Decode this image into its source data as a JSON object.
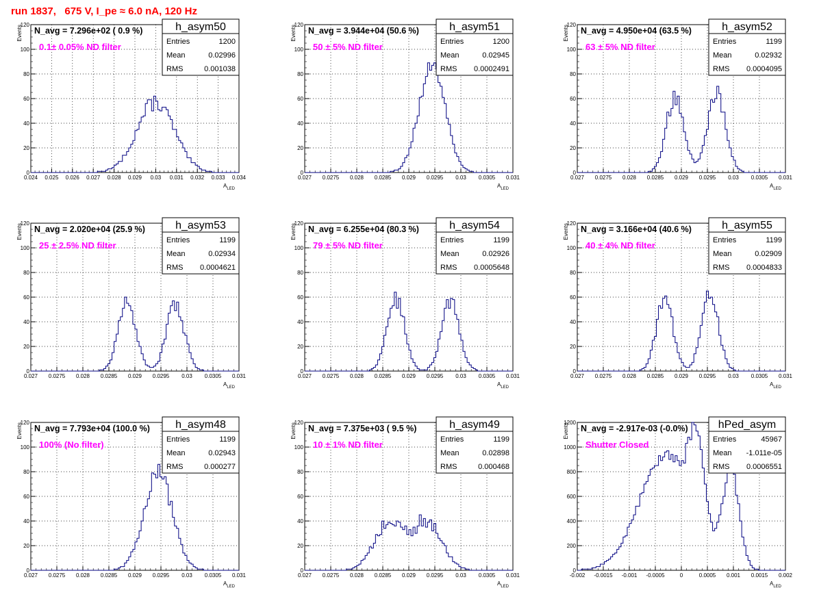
{
  "page": {
    "run_title": "run 1837,   675 V, I_pe ≈ 6.0 nA, 120 Hz"
  },
  "chart_data": [
    {
      "type": "histogram",
      "hist_name": "h_asym50",
      "xlabel": "A_LED",
      "ylabel": "Events",
      "xlim": [
        0.024,
        0.034
      ],
      "ylim": [
        0,
        120
      ],
      "xticks": [
        "0.024",
        "0.025",
        "0.026",
        "0.027",
        "0.028",
        "0.029",
        "0.03",
        "0.031",
        "0.032",
        "0.033",
        "0.034"
      ],
      "yticks": [
        "0",
        "20",
        "40",
        "60",
        "80",
        "100",
        "120"
      ],
      "navg": "N_avg = 7.296e+02 ( 0.9 %)",
      "filter_label": "0.1± 0.05% ND filter",
      "stats": {
        "entries_label": "Entries",
        "entries": "1200",
        "mean_label": "Mean",
        "mean": "0.02996",
        "rms_label": "RMS",
        "rms": "0.001038"
      },
      "peaks": [
        [
          0.03,
          0.0009,
          57
        ]
      ],
      "noise": 0.12
    },
    {
      "type": "histogram",
      "hist_name": "h_asym51",
      "xlabel": "A_LED",
      "ylabel": "Events",
      "xlim": [
        0.027,
        0.031
      ],
      "ylim": [
        0,
        120
      ],
      "xticks": [
        "0.027",
        "0.0275",
        "0.028",
        "0.0285",
        "0.029",
        "0.0295",
        "0.03",
        "0.0305",
        "0.031"
      ],
      "yticks": [
        "0",
        "20",
        "40",
        "60",
        "80",
        "100",
        "120"
      ],
      "navg": "N_avg = 3.944e+04 (50.6 %)",
      "filter_label": "50 ± 5% ND filter",
      "stats": {
        "entries_label": "Entries",
        "entries": "1200",
        "mean_label": "Mean",
        "mean": "0.02945",
        "rms_label": "RMS",
        "rms": "0.0002491"
      },
      "peaks": [
        [
          0.02945,
          0.00025,
          88
        ]
      ],
      "noise": 0.08
    },
    {
      "type": "histogram",
      "hist_name": "h_asym52",
      "xlabel": "A_LED",
      "ylabel": "Events",
      "xlim": [
        0.027,
        0.031
      ],
      "ylim": [
        0,
        120
      ],
      "xticks": [
        "0.027",
        "0.0275",
        "0.028",
        "0.0285",
        "0.029",
        "0.0295",
        "0.03",
        "0.0305",
        "0.031"
      ],
      "yticks": [
        "0",
        "20",
        "40",
        "60",
        "80",
        "100",
        "120"
      ],
      "navg": "N_avg = 4.950e+04 (63.5 %)",
      "filter_label": "63 ± 5% ND filter",
      "stats": {
        "entries_label": "Entries",
        "entries": "1199",
        "mean_label": "Mean",
        "mean": "0.02932",
        "rms_label": "RMS",
        "rms": "0.0004095"
      },
      "peaks": [
        [
          0.02888,
          0.00017,
          62
        ],
        [
          0.02968,
          0.00017,
          66
        ]
      ],
      "noise": 0.12
    },
    {
      "type": "histogram",
      "hist_name": "h_asym53",
      "xlabel": "A_LED",
      "ylabel": "Events",
      "xlim": [
        0.027,
        0.031
      ],
      "ylim": [
        0,
        120
      ],
      "xticks": [
        "0.027",
        "0.0275",
        "0.028",
        "0.0285",
        "0.029",
        "0.0295",
        "0.03",
        "0.0305",
        "0.031"
      ],
      "yticks": [
        "0",
        "20",
        "40",
        "60",
        "80",
        "100",
        "120"
      ],
      "navg": "N_avg = 2.020e+04 (25.9 %)",
      "filter_label": "25 ± 2.5% ND filter",
      "stats": {
        "entries_label": "Entries",
        "entries": "1199",
        "mean_label": "Mean",
        "mean": "0.02934",
        "rms_label": "RMS",
        "rms": "0.0004621"
      },
      "peaks": [
        [
          0.02885,
          0.00017,
          55
        ],
        [
          0.02978,
          0.00017,
          55
        ]
      ],
      "noise": 0.12
    },
    {
      "type": "histogram",
      "hist_name": "h_asym54",
      "xlabel": "A_LED",
      "ylabel": "Events",
      "xlim": [
        0.027,
        0.031
      ],
      "ylim": [
        0,
        120
      ],
      "xticks": [
        "0.027",
        "0.0275",
        "0.028",
        "0.0285",
        "0.029",
        "0.0295",
        "0.03",
        "0.0305",
        "0.031"
      ],
      "yticks": [
        "0",
        "20",
        "40",
        "60",
        "80",
        "100",
        "120"
      ],
      "navg": "N_avg = 6.255e+04 (80.3 %)",
      "filter_label": "79 ± 5% ND filter",
      "stats": {
        "entries_label": "Entries",
        "entries": "1199",
        "mean_label": "Mean",
        "mean": "0.02926",
        "rms_label": "RMS",
        "rms": "0.0005648"
      },
      "peaks": [
        [
          0.02875,
          0.00017,
          58
        ],
        [
          0.0298,
          0.00017,
          56
        ]
      ],
      "noise": 0.12
    },
    {
      "type": "histogram",
      "hist_name": "h_asym55",
      "xlabel": "A_LED",
      "ylabel": "Events",
      "xlim": [
        0.027,
        0.031
      ],
      "ylim": [
        0,
        120
      ],
      "xticks": [
        "0.027",
        "0.0275",
        "0.028",
        "0.0285",
        "0.029",
        "0.0295",
        "0.03",
        "0.0305",
        "0.031"
      ],
      "yticks": [
        "0",
        "20",
        "40",
        "60",
        "80",
        "100",
        "120"
      ],
      "navg": "N_avg = 3.166e+04 (40.6 %)",
      "filter_label": "40 ± 4% ND filter",
      "stats": {
        "entries_label": "Entries",
        "entries": "1199",
        "mean_label": "Mean",
        "mean": "0.02909",
        "rms_label": "RMS",
        "rms": "0.0004833"
      },
      "peaks": [
        [
          0.02868,
          0.00016,
          60
        ],
        [
          0.02955,
          0.00016,
          64
        ]
      ],
      "noise": 0.12
    },
    {
      "type": "histogram",
      "hist_name": "h_asym48",
      "xlabel": "A_LED",
      "ylabel": "Events",
      "xlim": [
        0.027,
        0.031
      ],
      "ylim": [
        0,
        120
      ],
      "xticks": [
        "0.027",
        "0.0275",
        "0.028",
        "0.0285",
        "0.029",
        "0.0295",
        "0.03",
        "0.0305",
        "0.031"
      ],
      "yticks": [
        "0",
        "20",
        "40",
        "60",
        "80",
        "100",
        "120"
      ],
      "navg": "N_avg = 7.793e+04 (100.0 %)",
      "filter_label": "100% (No filter)",
      "stats": {
        "entries_label": "Entries",
        "entries": "1199",
        "mean_label": "Mean",
        "mean": "0.02943",
        "rms_label": "RMS",
        "rms": "0.000277"
      },
      "peaks": [
        [
          0.02945,
          0.00027,
          80
        ]
      ],
      "noise": 0.1
    },
    {
      "type": "histogram",
      "hist_name": "h_asym49",
      "xlabel": "A_LED",
      "ylabel": "Events",
      "xlim": [
        0.027,
        0.031
      ],
      "ylim": [
        0,
        120
      ],
      "xticks": [
        "0.027",
        "0.0275",
        "0.028",
        "0.0285",
        "0.029",
        "0.0295",
        "0.03",
        "0.0305",
        "0.031"
      ],
      "yticks": [
        "0",
        "20",
        "40",
        "60",
        "80",
        "100",
        "120"
      ],
      "navg": "N_avg = 7.375e+03 ( 9.5 %)",
      "filter_label": "10 ± 1% ND filter",
      "stats": {
        "entries_label": "Entries",
        "entries": "1199",
        "mean_label": "Mean",
        "mean": "0.02898",
        "rms_label": "RMS",
        "rms": "0.000468"
      },
      "peaks": [
        [
          0.02862,
          0.00028,
          38
        ],
        [
          0.02935,
          0.00028,
          38
        ]
      ],
      "noise": 0.18
    },
    {
      "type": "histogram",
      "hist_name": "hPed_asym",
      "xlabel": "A_LED",
      "ylabel": "Events",
      "xlim": [
        -0.002,
        0.002
      ],
      "ylim": [
        0,
        1200
      ],
      "xticks": [
        "-0.002",
        "-0.0015",
        "-0.001",
        "-0.0005",
        "0",
        "0.0005",
        "0.001",
        "0.0015",
        "0.002"
      ],
      "yticks": [
        "0",
        "200",
        "400",
        "600",
        "800",
        "1000",
        "1200"
      ],
      "navg": "N_avg = -2.917e-03 (-0.0%)",
      "filter_label": "Shutter Closed",
      "stats": {
        "entries_label": "Entries",
        "entries": "45967",
        "mean_label": "Mean",
        "mean": "-1.011e-05",
        "rms_label": "RMS",
        "rms": "0.0006551"
      },
      "peaks": [
        [
          -0.0003,
          0.0005,
          940
        ],
        [
          0.0003,
          0.00015,
          700
        ],
        [
          0.00095,
          0.00016,
          780
        ]
      ],
      "noise": 0.06
    }
  ]
}
